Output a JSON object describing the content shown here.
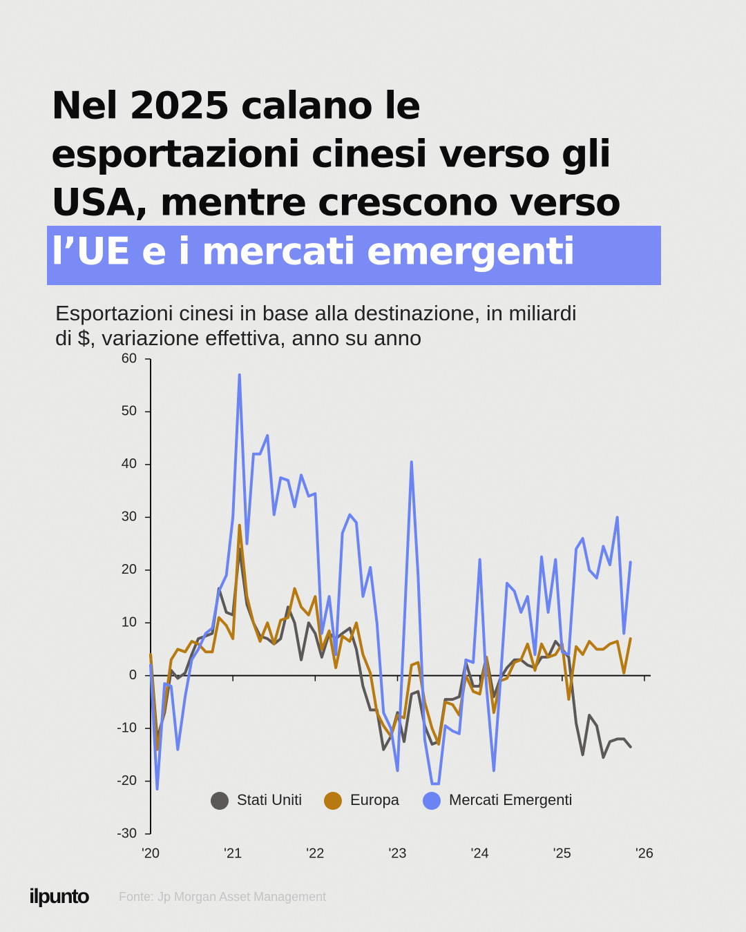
{
  "header": {
    "title_lines": [
      "Nel 2025 calano le",
      "esportazioni cinesi verso gli",
      "USA, mentre crescono verso"
    ],
    "title_highlight": "l’UE e i mercati emergenti"
  },
  "footer": {
    "logo": "ilpunto",
    "source": "Fonte: Jp Morgan Asset Management"
  },
  "chart_data": {
    "type": "line",
    "subtitle_lines": [
      "Esportazioni cinesi in base alla destinazione, in miliardi",
      "di $, variazione effettiva, anno su anno"
    ],
    "x": [
      2020,
      2020.08,
      2020.17,
      2020.25,
      2020.33,
      2020.42,
      2020.5,
      2020.58,
      2020.67,
      2020.75,
      2020.83,
      2020.92,
      2021,
      2021.08,
      2021.17,
      2021.25,
      2021.33,
      2021.42,
      2021.5,
      2021.58,
      2021.67,
      2021.75,
      2021.83,
      2021.92,
      2022,
      2022.08,
      2022.17,
      2022.25,
      2022.33,
      2022.42,
      2022.5,
      2022.58,
      2022.67,
      2022.75,
      2022.83,
      2022.92,
      2023,
      2023.08,
      2023.17,
      2023.25,
      2023.33,
      2023.42,
      2023.5,
      2023.58,
      2023.67,
      2023.75,
      2023.83,
      2023.92,
      2024,
      2024.08,
      2024.17,
      2024.25,
      2024.33,
      2024.42,
      2024.5,
      2024.58,
      2024.67,
      2024.75,
      2024.83,
      2024.92,
      2025,
      2025.08,
      2025.17,
      2025.25,
      2025.33,
      2025.42,
      2025.5,
      2025.58,
      2025.67,
      2025.75,
      2025.83
    ],
    "series": [
      {
        "name": "Stati Uniti",
        "color": "#5b5857",
        "values": [
          4,
          -12,
          -7,
          1,
          -0.5,
          0.5,
          4,
          7,
          7.5,
          8,
          16.5,
          12,
          11.5,
          24,
          13.5,
          10,
          7.5,
          7,
          6,
          7,
          13,
          10,
          3,
          10,
          8,
          3.5,
          8,
          7,
          8,
          9,
          5,
          -2,
          -6.5,
          -6.5,
          -14,
          -11.5,
          -7,
          -12.5,
          -3.5,
          -3,
          -9.5,
          -13,
          -12.5,
          -4.5,
          -4.5,
          -4,
          2.5,
          -2,
          -2,
          3.5,
          -4,
          -0.5,
          1.5,
          3,
          3,
          2,
          1.5,
          3.5,
          3.5,
          6.5,
          5,
          3.5,
          -9,
          -15,
          -7.5,
          -9.5,
          -15.5,
          -12.5,
          -12,
          -12,
          -13.5
        ]
      },
      {
        "name": "Europa",
        "color": "#b77a10",
        "values": [
          4,
          -14,
          -6,
          3,
          5,
          4.5,
          6.5,
          6,
          4.5,
          4.5,
          11,
          9.5,
          7,
          28.5,
          15,
          10,
          6.5,
          10,
          6,
          10.5,
          11,
          16.5,
          13,
          11.5,
          15,
          5,
          8.5,
          1.5,
          7.5,
          6.5,
          10,
          4,
          0.5,
          -7,
          -9.5,
          -11.5,
          -7.5,
          -8,
          2,
          2.5,
          -5,
          -10,
          -13,
          -5,
          -5.5,
          -7.5,
          0,
          -3,
          -3.5,
          3.5,
          -7,
          -1,
          -0.5,
          2.5,
          3,
          6,
          1,
          6,
          3.5,
          4,
          6,
          -4.5,
          5.5,
          4,
          6.5,
          5,
          5,
          6,
          6.5,
          0.5,
          7
        ]
      },
      {
        "name": "Mercati Emergenti",
        "color": "#6a84f4",
        "values": [
          2,
          -21.5,
          -1.5,
          -2,
          -14,
          -4,
          3,
          5,
          8,
          9,
          16,
          19,
          30,
          57,
          25,
          42,
          42,
          45.5,
          30.5,
          37.5,
          37,
          32,
          38,
          34,
          34.5,
          8,
          15,
          4,
          27,
          30.5,
          29,
          15,
          20.5,
          10,
          -7,
          -10,
          -18,
          9,
          40.5,
          19,
          -12,
          -20.5,
          -20.5,
          -9.5,
          -10.5,
          -11,
          3,
          2.5,
          22,
          -2,
          -18,
          -1,
          17.5,
          16,
          12,
          15,
          4,
          22.5,
          12,
          22,
          4.5,
          4,
          24,
          26,
          20,
          18.5,
          24.5,
          21,
          30,
          8,
          21.5
        ]
      }
    ],
    "xlim": [
      2020,
      2026
    ],
    "xticks": [
      {
        "value": 2020,
        "label": "'20"
      },
      {
        "value": 2021,
        "label": "'21"
      },
      {
        "value": 2022,
        "label": "'22"
      },
      {
        "value": 2023,
        "label": "'23"
      },
      {
        "value": 2024,
        "label": "'24"
      },
      {
        "value": 2025,
        "label": "'25"
      },
      {
        "value": 2026,
        "label": "'26"
      }
    ],
    "ylim": [
      -30,
      60
    ],
    "yticks": [
      -30,
      -20,
      -10,
      0,
      10,
      20,
      30,
      40,
      50,
      60
    ],
    "grid": false,
    "legend": "bottom"
  }
}
